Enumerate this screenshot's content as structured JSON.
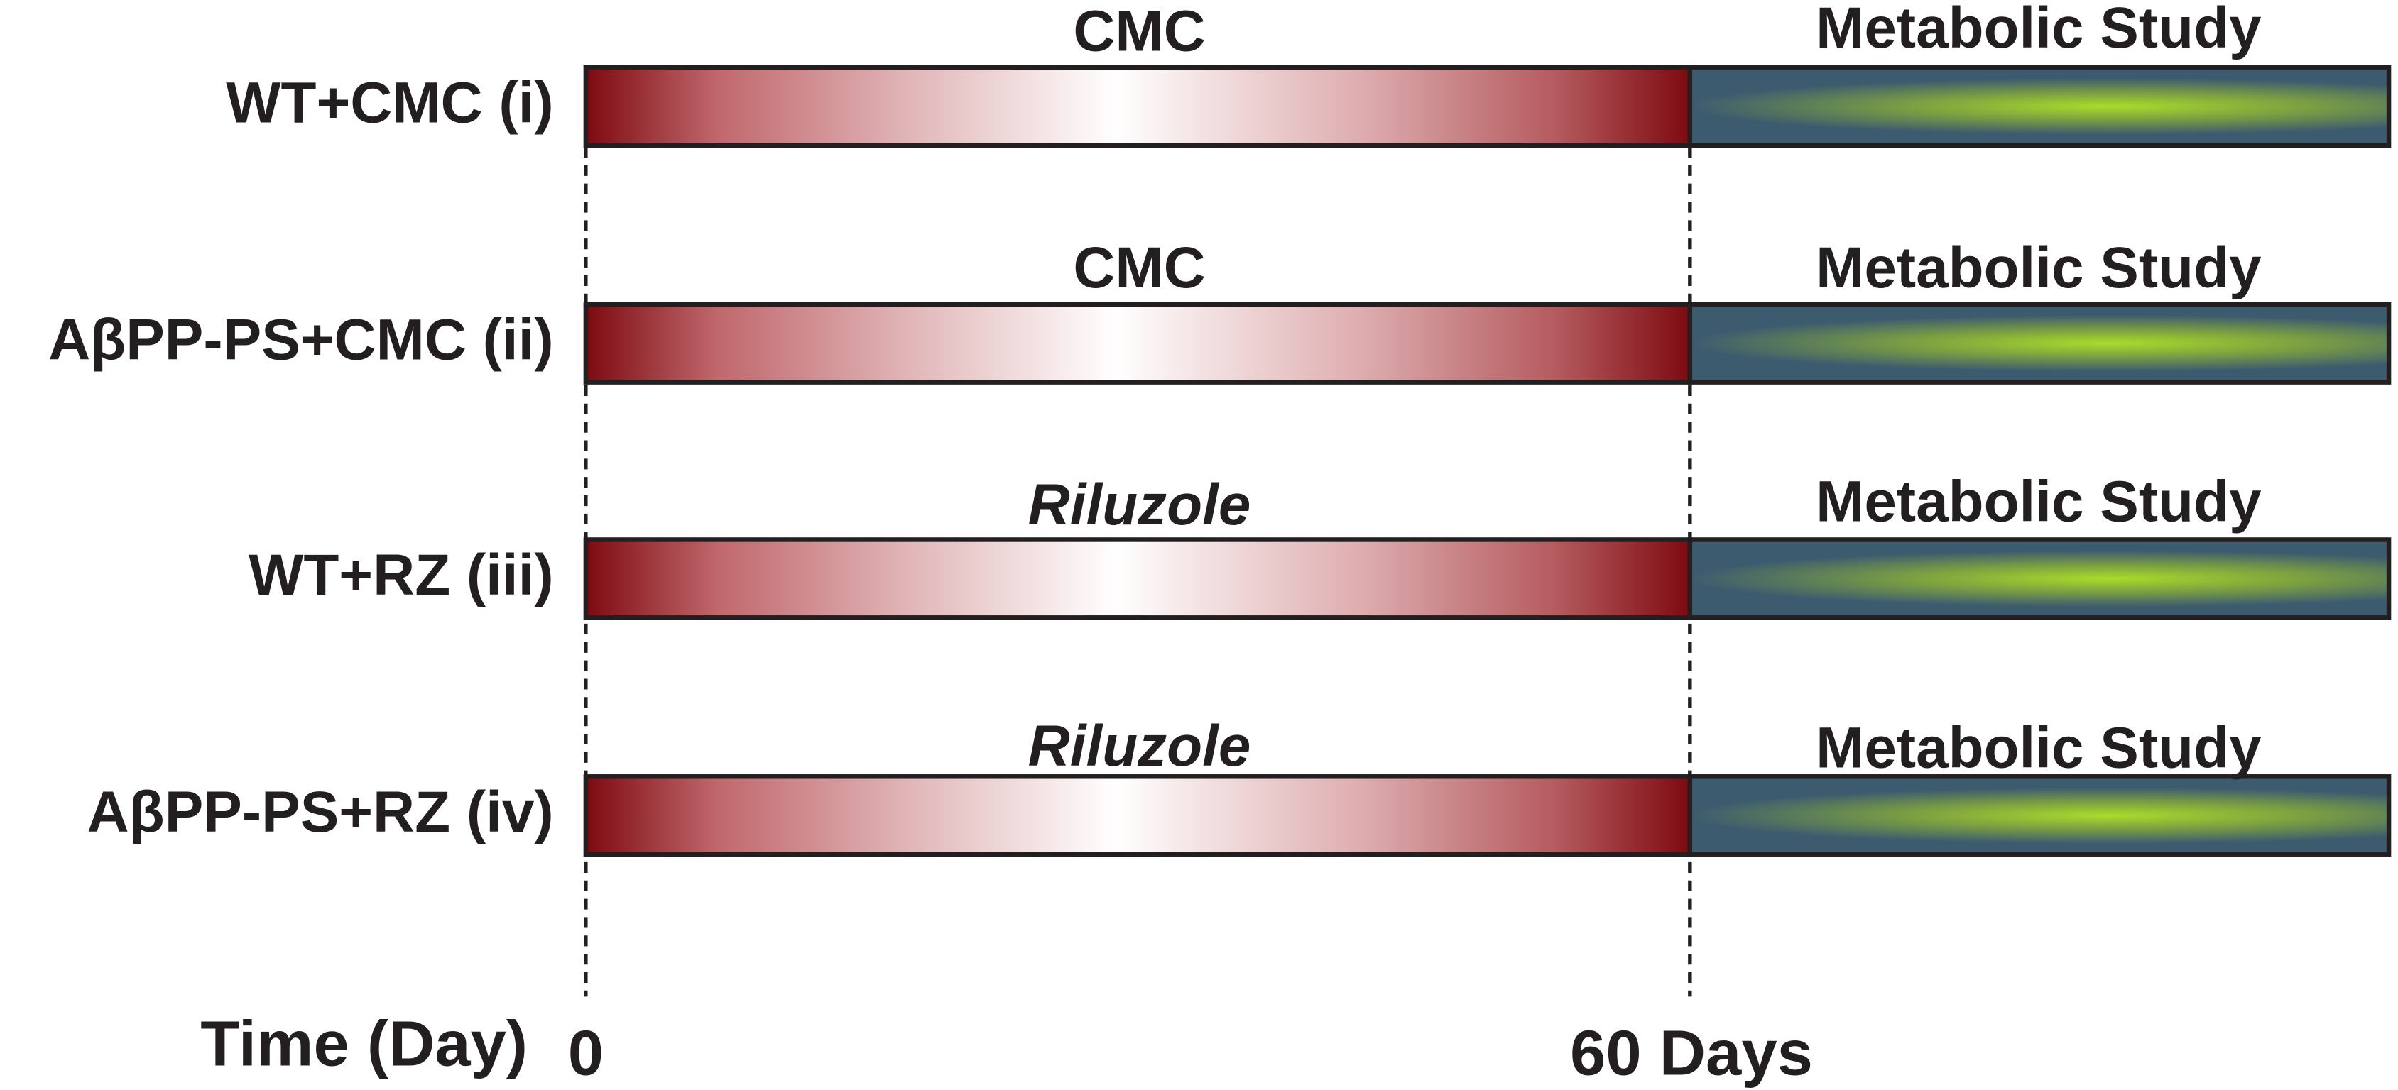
{
  "rows": [
    {
      "label": "WT+CMC (i)",
      "treatment": "CMC",
      "phase": "Metabolic Study"
    },
    {
      "label": "AβPP-PS+CMC (ii)",
      "treatment": "CMC",
      "phase": "Metabolic Study"
    },
    {
      "label": "WT+RZ (iii)",
      "treatment": "Riluzole",
      "phase": "Metabolic Study"
    },
    {
      "label": "AβPP-PS+RZ (iv)",
      "treatment": "Riluzole",
      "phase": "Metabolic Study"
    }
  ],
  "axis": {
    "title": "Time (Day)",
    "start": "0",
    "end": "60 Days"
  }
}
